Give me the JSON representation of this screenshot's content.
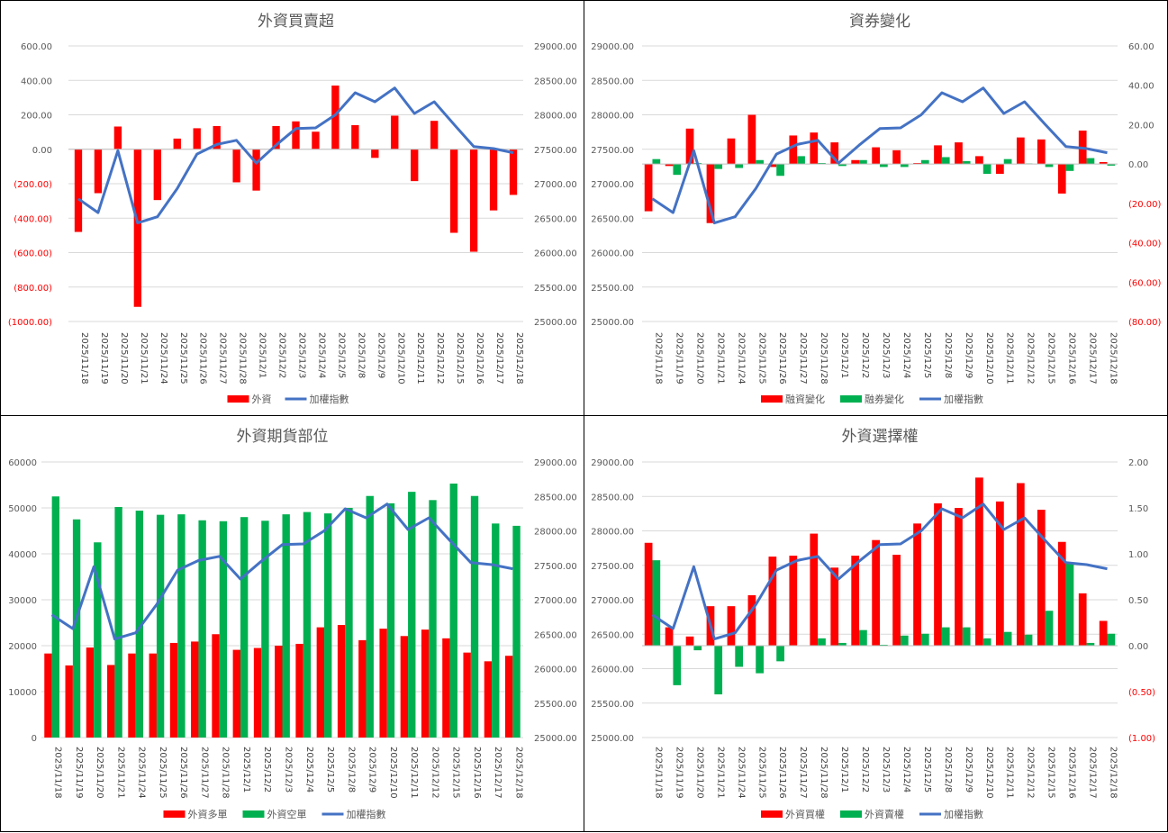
{
  "colors": {
    "red": "#ff0000",
    "green": "#00b050",
    "line": "#4472c4",
    "grid": "#d9d9d9",
    "axis": "#bfbfbf"
  },
  "chart_data": [
    {
      "type": "bar",
      "title": "外資買賣超",
      "categories": [
        "2025/11/18",
        "2025/11/19",
        "2025/11/20",
        "2025/11/21",
        "2025/11/24",
        "2025/11/25",
        "2025/11/26",
        "2025/11/27",
        "2025/11/28",
        "2025/12/1",
        "2025/12/2",
        "2025/12/3",
        "2025/12/4",
        "2025/12/5",
        "2025/12/8",
        "2025/12/9",
        "2025/12/10",
        "2025/12/11",
        "2025/12/12",
        "2025/12/15",
        "2025/12/16",
        "2025/12/17",
        "2025/12/18"
      ],
      "left_axis": {
        "ylim": [
          -1000,
          600
        ],
        "step": 200,
        "labels": [
          "(1000.00)",
          "(800.00)",
          "(600.00)",
          "(400.00)",
          "(200.00)",
          "0.00",
          "200.00",
          "400.00",
          "600.00"
        ]
      },
      "right_axis": {
        "ylim": [
          25000,
          29000
        ],
        "step": 500,
        "labels": [
          "25000.00",
          "25500.00",
          "26000.00",
          "26500.00",
          "27000.00",
          "27500.00",
          "28000.00",
          "28500.00",
          "29000.00"
        ]
      },
      "bar_mode": "signed",
      "series": [
        {
          "name": "外資",
          "kind": "bar",
          "axis": "left",
          "color": "red",
          "values": [
            -480,
            -255,
            132,
            -915,
            -295,
            62,
            122,
            135,
            -192,
            -240,
            135,
            162,
            102,
            370,
            140,
            -50,
            195,
            -185,
            165,
            -485,
            -595,
            -355,
            -265
          ]
        },
        {
          "name": "加權指數",
          "kind": "line",
          "axis": "right",
          "color": "line",
          "values": [
            26780,
            26580,
            27480,
            26430,
            26520,
            26930,
            27430,
            27570,
            27630,
            27300,
            27560,
            27800,
            27810,
            28000,
            28320,
            28190,
            28390,
            28020,
            28190,
            27860,
            27540,
            27510,
            27450
          ]
        }
      ],
      "legend": [
        {
          "name": "外資",
          "kind": "bar",
          "color": "red"
        },
        {
          "name": "加權指數",
          "kind": "line",
          "color": "line"
        }
      ]
    },
    {
      "type": "bar",
      "title": "資券變化",
      "categories": [
        "2025/11/18",
        "2025/11/19",
        "2025/11/20",
        "2025/11/21",
        "2025/11/24",
        "2025/11/25",
        "2025/11/26",
        "2025/11/27",
        "2025/11/28",
        "2025/12/1",
        "2025/12/2",
        "2025/12/3",
        "2025/12/4",
        "2025/12/5",
        "2025/12/8",
        "2025/12/9",
        "2025/12/10",
        "2025/12/11",
        "2025/12/12",
        "2025/12/15",
        "2025/12/16",
        "2025/12/17",
        "2025/12/18"
      ],
      "left_axis": {
        "ylim": [
          25000,
          29000
        ],
        "step": 500,
        "labels": [
          "25000.00",
          "25500.00",
          "26000.00",
          "26500.00",
          "27000.00",
          "27500.00",
          "28000.00",
          "28500.00",
          "29000.00"
        ]
      },
      "right_axis": {
        "ylim": [
          -80,
          60
        ],
        "step": 20,
        "labels": [
          "(80.00)",
          "(60.00)",
          "(40.00)",
          "(20.00)",
          "0.00",
          "20.00",
          "40.00",
          "60.00"
        ]
      },
      "bar_mode": "signed",
      "series": [
        {
          "name": "融資變化",
          "kind": "bar",
          "axis": "right",
          "color": "red",
          "values": [
            -24,
            -1,
            18,
            -30,
            13,
            25,
            -1.5,
            14.5,
            16,
            11,
            2,
            8.5,
            7,
            0.5,
            9.5,
            11,
            4,
            -5,
            13.5,
            12.5,
            -15,
            17,
            1
          ]
        },
        {
          "name": "融券變化",
          "kind": "bar",
          "axis": "right",
          "color": "green",
          "values": [
            2.5,
            -5.5,
            0.5,
            -2.5,
            -2,
            2,
            -6,
            4,
            0.5,
            -1,
            2,
            -1.5,
            -1.5,
            2,
            3.5,
            1.5,
            -5,
            2.5,
            0.3,
            -1.5,
            -3.5,
            3,
            -0.8
          ]
        },
        {
          "name": "加權指數",
          "kind": "line",
          "axis": "left",
          "color": "line",
          "values": [
            26780,
            26580,
            27480,
            26430,
            26520,
            26930,
            27430,
            27570,
            27630,
            27300,
            27560,
            27800,
            27810,
            28000,
            28320,
            28190,
            28390,
            28020,
            28190,
            27860,
            27540,
            27510,
            27450
          ]
        }
      ],
      "legend": [
        {
          "name": "融資變化",
          "kind": "bar",
          "color": "red"
        },
        {
          "name": "融券變化",
          "kind": "bar",
          "color": "green"
        },
        {
          "name": "加權指數",
          "kind": "line",
          "color": "line"
        }
      ]
    },
    {
      "type": "bar",
      "title": "外資期貨部位",
      "categories": [
        "2025/11/18",
        "2025/11/19",
        "2025/11/20",
        "2025/11/21",
        "2025/11/24",
        "2025/11/25",
        "2025/11/26",
        "2025/11/27",
        "2025/11/28",
        "2025/12/1",
        "2025/12/2",
        "2025/12/3",
        "2025/12/4",
        "2025/12/5",
        "2025/12/8",
        "2025/12/9",
        "2025/12/10",
        "2025/12/11",
        "2025/12/12",
        "2025/12/15",
        "2025/12/16",
        "2025/12/17",
        "2025/12/18"
      ],
      "left_axis": {
        "ylim": [
          0,
          60000
        ],
        "step": 10000,
        "labels": [
          "0",
          "10000",
          "20000",
          "30000",
          "40000",
          "50000",
          "60000"
        ]
      },
      "right_axis": {
        "ylim": [
          25000,
          29000
        ],
        "step": 500,
        "labels": [
          "25000.00",
          "25500.00",
          "26000.00",
          "26500.00",
          "27000.00",
          "27500.00",
          "28000.00",
          "28500.00",
          "29000.00"
        ]
      },
      "bar_mode": "paired",
      "series": [
        {
          "name": "外資多單",
          "kind": "bar",
          "axis": "left",
          "color": "red",
          "values": [
            18300,
            15700,
            19600,
            15800,
            18300,
            18300,
            20600,
            20900,
            22500,
            19100,
            19500,
            20000,
            20400,
            24000,
            24500,
            21200,
            23700,
            22100,
            23500,
            21600,
            18500,
            16600,
            17800
          ]
        },
        {
          "name": "外資空單",
          "kind": "bar",
          "axis": "left",
          "color": "green",
          "values": [
            52500,
            47500,
            42500,
            50200,
            49400,
            48500,
            48600,
            47300,
            47100,
            48000,
            47200,
            48600,
            49100,
            48800,
            50000,
            52600,
            51000,
            53500,
            51700,
            55300,
            52600,
            46600,
            46100
          ]
        },
        {
          "name": "加權指數",
          "kind": "line",
          "axis": "right",
          "color": "line",
          "values": [
            26780,
            26580,
            27480,
            26430,
            26520,
            26930,
            27430,
            27570,
            27630,
            27300,
            27560,
            27800,
            27810,
            28000,
            28320,
            28190,
            28390,
            28020,
            28190,
            27860,
            27540,
            27510,
            27450
          ]
        }
      ],
      "legend": [
        {
          "name": "外資多單",
          "kind": "bar",
          "color": "red"
        },
        {
          "name": "外資空單",
          "kind": "bar",
          "color": "green"
        },
        {
          "name": "加權指數",
          "kind": "line",
          "color": "line"
        }
      ]
    },
    {
      "type": "bar",
      "title": "外資選擇權",
      "categories": [
        "2025/11/18",
        "2025/11/19",
        "2025/11/20",
        "2025/11/21",
        "2025/11/24",
        "2025/11/25",
        "2025/11/26",
        "2025/11/27",
        "2025/11/28",
        "2025/12/1",
        "2025/12/2",
        "2025/12/3",
        "2025/12/4",
        "2025/12/5",
        "2025/12/8",
        "2025/12/9",
        "2025/12/10",
        "2025/12/11",
        "2025/12/12",
        "2025/12/15",
        "2025/12/16",
        "2025/12/17",
        "2025/12/18"
      ],
      "left_axis": {
        "ylim": [
          25000,
          29000
        ],
        "step": 500,
        "labels": [
          "25000.00",
          "25500.00",
          "26000.00",
          "26500.00",
          "27000.00",
          "27500.00",
          "28000.00",
          "28500.00",
          "29000.00"
        ]
      },
      "right_axis": {
        "ylim": [
          -1,
          2
        ],
        "step": 0.5,
        "labels": [
          "(1.00)",
          "(0.50)",
          "0.00",
          "0.50",
          "1.00",
          "1.50",
          "2.00"
        ]
      },
      "bar_mode": "signed",
      "series": [
        {
          "name": "外資買權",
          "kind": "bar",
          "axis": "right",
          "color": "red",
          "values": [
            1.12,
            0.2,
            0.1,
            0.43,
            0.43,
            0.55,
            0.97,
            0.98,
            1.22,
            0.85,
            0.98,
            1.15,
            0.99,
            1.33,
            1.55,
            1.5,
            1.83,
            1.57,
            1.77,
            1.48,
            1.13,
            0.57,
            0.27
          ]
        },
        {
          "name": "外資賣權",
          "kind": "bar",
          "axis": "right",
          "color": "green",
          "values": [
            0.93,
            -0.43,
            -0.05,
            -0.53,
            -0.23,
            -0.3,
            -0.17,
            0,
            0.08,
            0.03,
            0.17,
            0.01,
            0.11,
            0.13,
            0.2,
            0.2,
            0.08,
            0.15,
            0.12,
            0.38,
            0.9,
            0.03,
            0.13
          ]
        },
        {
          "name": "加權指數",
          "kind": "line",
          "axis": "left",
          "color": "line",
          "values": [
            26780,
            26580,
            27480,
            26430,
            26520,
            26930,
            27430,
            27570,
            27630,
            27300,
            27560,
            27800,
            27810,
            28000,
            28320,
            28190,
            28390,
            28020,
            28190,
            27860,
            27540,
            27510,
            27450
          ]
        }
      ],
      "legend": [
        {
          "name": "外資買權",
          "kind": "bar",
          "color": "red"
        },
        {
          "name": "外資賣權",
          "kind": "bar",
          "color": "green"
        },
        {
          "name": "加權指數",
          "kind": "line",
          "color": "line"
        }
      ]
    }
  ]
}
